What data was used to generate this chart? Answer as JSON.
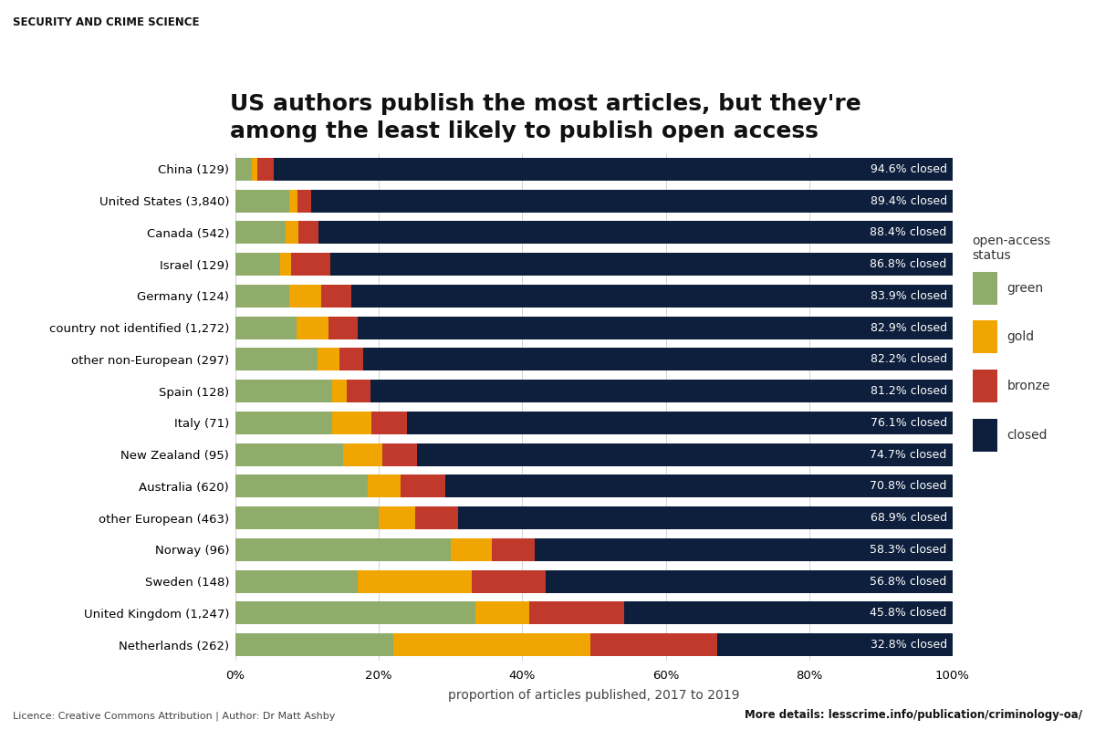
{
  "categories": [
    "Netherlands (262)",
    "United Kingdom (1,247)",
    "Sweden (148)",
    "Norway (96)",
    "other European (463)",
    "Australia (620)",
    "New Zealand (95)",
    "Italy (71)",
    "Spain (128)",
    "other non-European (297)",
    "country not identified (1,272)",
    "Germany (124)",
    "Israel (129)",
    "Canada (542)",
    "United States (3,840)",
    "China (129)"
  ],
  "closed_pct": [
    32.8,
    45.8,
    56.8,
    58.3,
    68.9,
    70.8,
    74.7,
    76.1,
    81.2,
    82.2,
    82.9,
    83.9,
    86.8,
    88.4,
    89.4,
    94.6
  ],
  "green_pct": [
    22.0,
    33.5,
    17.0,
    30.0,
    20.0,
    18.5,
    15.0,
    13.5,
    13.5,
    11.5,
    8.5,
    7.5,
    6.2,
    7.0,
    7.5,
    2.3
  ],
  "gold_pct": [
    27.5,
    7.5,
    16.0,
    5.8,
    5.0,
    4.5,
    5.5,
    5.5,
    2.0,
    3.0,
    4.5,
    4.5,
    1.5,
    1.8,
    1.2,
    0.8
  ],
  "bronze_pct": [
    17.7,
    13.2,
    10.2,
    5.9,
    6.1,
    6.2,
    4.8,
    4.9,
    3.3,
    3.3,
    4.1,
    4.1,
    5.5,
    2.8,
    1.9,
    2.3
  ],
  "colors": {
    "green": "#8fac6b",
    "gold": "#f0a500",
    "bronze": "#c0392b",
    "closed": "#0d1f3c"
  },
  "title_line1": "US authors publish the most articles, but they're",
  "title_line2": "among the least likely to publish open access",
  "xlabel": "proportion of articles published, 2017 to 2019",
  "legend_title": "open-access\nstatus",
  "header_bg": "#f0a500",
  "header_text": "SECURITY AND CRIME SCIENCE",
  "footer_left": "Licence: Creative Commons Attribution | Author: Dr Matt Ashby",
  "footer_right": "More details: lesscrime.info/publication/criminology-oa/",
  "bg_color": "#ffffff",
  "bar_height": 0.72,
  "title_fontsize": 18,
  "label_fontsize": 9,
  "tick_fontsize": 9.5
}
